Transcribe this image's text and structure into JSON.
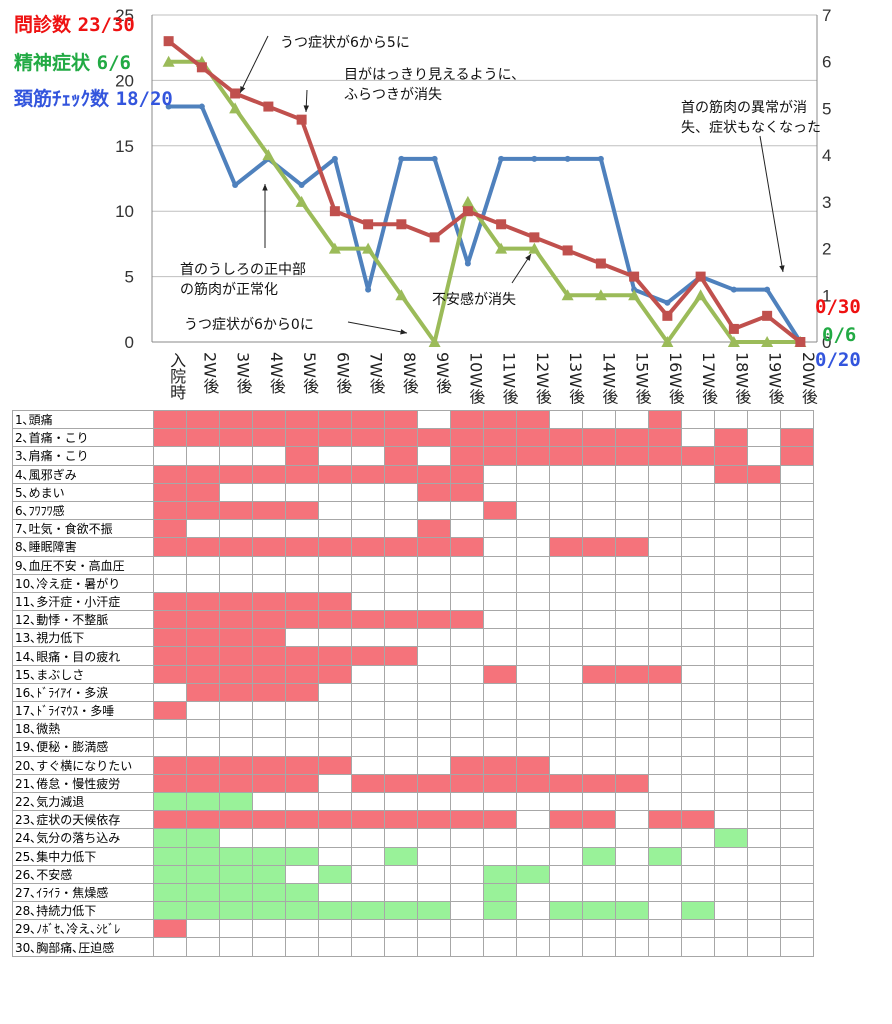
{
  "legend": {
    "q": {
      "label": "問診数",
      "value": "23/30",
      "color": "#ee1111"
    },
    "m": {
      "label": "精神症状",
      "value": "6/6",
      "color": "#22aa44"
    },
    "n": {
      "label": "頚筋ﾁｪｯｸ数",
      "value": "18/20",
      "color": "#3355dd"
    }
  },
  "end_labels": {
    "q": "0/30",
    "m": "0/6",
    "n": "0/20"
  },
  "chart_data": {
    "type": "line",
    "categories": [
      "入院時",
      "2W後",
      "3W後",
      "4W後",
      "5W後",
      "6W後",
      "7W後",
      "8W後",
      "9W後",
      "10W後",
      "11W後",
      "12W後",
      "13W後",
      "14W後",
      "15W後",
      "16W後",
      "17W後",
      "18W後",
      "19W後",
      "20W後"
    ],
    "left_axis": {
      "ticks": [
        0,
        5,
        10,
        15,
        20,
        25
      ],
      "ylim": [
        0,
        25
      ]
    },
    "right_axis": {
      "ticks": [
        0,
        1,
        2,
        3,
        4,
        5,
        6,
        7
      ],
      "ylim": [
        0,
        7
      ]
    },
    "series": [
      {
        "key": "q",
        "axis": "left",
        "color": "#c0504d",
        "values": [
          23,
          21,
          19,
          18,
          17,
          10,
          9,
          9,
          8,
          10,
          9,
          8,
          7,
          6,
          5,
          2,
          5,
          1,
          2,
          0
        ]
      },
      {
        "key": "m",
        "axis": "right",
        "color": "#9bbb59",
        "values": [
          6,
          6,
          5,
          4,
          3,
          2,
          2,
          1,
          0,
          3,
          2,
          2,
          1,
          1,
          1,
          0,
          1,
          0,
          0,
          0
        ]
      },
      {
        "key": "n",
        "axis": "left",
        "color": "#4f81bd",
        "values": [
          18,
          18,
          12,
          14,
          12,
          14,
          4,
          14,
          14,
          6,
          14,
          14,
          14,
          14,
          4,
          3,
          5,
          4,
          4,
          0
        ]
      }
    ],
    "annotations": [
      "うつ症状が6から5に",
      "目がはっきり見えるように、ふらつきが消失",
      "首の筋肉の異常が消失、症状もなくなった",
      "首のうしろの正中部の筋肉が正常化",
      "不安感が消失",
      "うつ症状が6から0に"
    ]
  },
  "symptom_table": {
    "rows": [
      {
        "label": "1､頭痛",
        "cells": "rrrrrrrr.rrr...r..."
      },
      {
        "label": "2､首痛・こり",
        "cells": "rrrrrrrrrrrrrrrr.r.r"
      },
      {
        "label": "3､肩痛・こり",
        "cells": "....r..r.rrrrrrrrr.r"
      },
      {
        "label": "4､風邪ぎみ",
        "cells": "rrrrrrrrrr.......rr."
      },
      {
        "label": "5､めまい",
        "cells": "rr......rr.........."
      },
      {
        "label": "6､ﾌﾜﾌﾜ感",
        "cells": "rrrrr.....r........."
      },
      {
        "label": "7､吐気・食欲不振",
        "cells": "r.......r..........."
      },
      {
        "label": "8､睡眠障害",
        "cells": "rrrrrrrrrr..rrr....."
      },
      {
        "label": "9､血圧不安・高血圧",
        "cells": "...................."
      },
      {
        "label": "10､冷え症・暑がり",
        "cells": "...................."
      },
      {
        "label": "11､多汗症・小汗症",
        "cells": "rrrrrr.............."
      },
      {
        "label": "12､動悸・不整脈",
        "cells": "rrrrrrrrrr.........."
      },
      {
        "label": "13､視力低下",
        "cells": "rrrr................"
      },
      {
        "label": "14､眼痛・目の疲れ",
        "cells": "rrrrrrrr............"
      },
      {
        "label": "15､まぶしさ",
        "cells": "rrrrrr....r..rrr...."
      },
      {
        "label": "16､ﾄﾞﾗｲｱｲ・多涙",
        "cells": ".rrrr..............."
      },
      {
        "label": "17､ﾄﾞﾗｲﾏｳｽ・多唾",
        "cells": "r..................."
      },
      {
        "label": "18､微熱",
        "cells": "...................."
      },
      {
        "label": "19､便秘・膨満感",
        "cells": "...................."
      },
      {
        "label": "20､すぐ横になりたい",
        "cells": "rrrrrr...rrr........"
      },
      {
        "label": "21､倦怠・慢性疲労",
        "cells": "rrrrr.rrrrrrrrr....."
      },
      {
        "label": "22､気力減退",
        "cells": "ggg................."
      },
      {
        "label": "23､症状の天候依存",
        "cells": "rrrrrrrrrrr.rr.rr..."
      },
      {
        "label": "24､気分の落ち込み",
        "cells": "gg...............g.."
      },
      {
        "label": "25､集中力低下",
        "cells": "ggggg..g.....g.g...."
      },
      {
        "label": "26､不安感",
        "cells": "gggg.g....gg........"
      },
      {
        "label": "27､ｲﾗｲﾗ・焦燥感",
        "cells": "ggggg.....g........."
      },
      {
        "label": "28､持続力低下",
        "cells": "ggggggggg.g.ggg.g..."
      },
      {
        "label": "29､ﾉﾎﾞｾ､冷え､ｼﾋﾞﾚ",
        "cells": "r..................."
      },
      {
        "label": "30､胸部痛､圧迫感",
        "cells": "...................."
      }
    ]
  }
}
